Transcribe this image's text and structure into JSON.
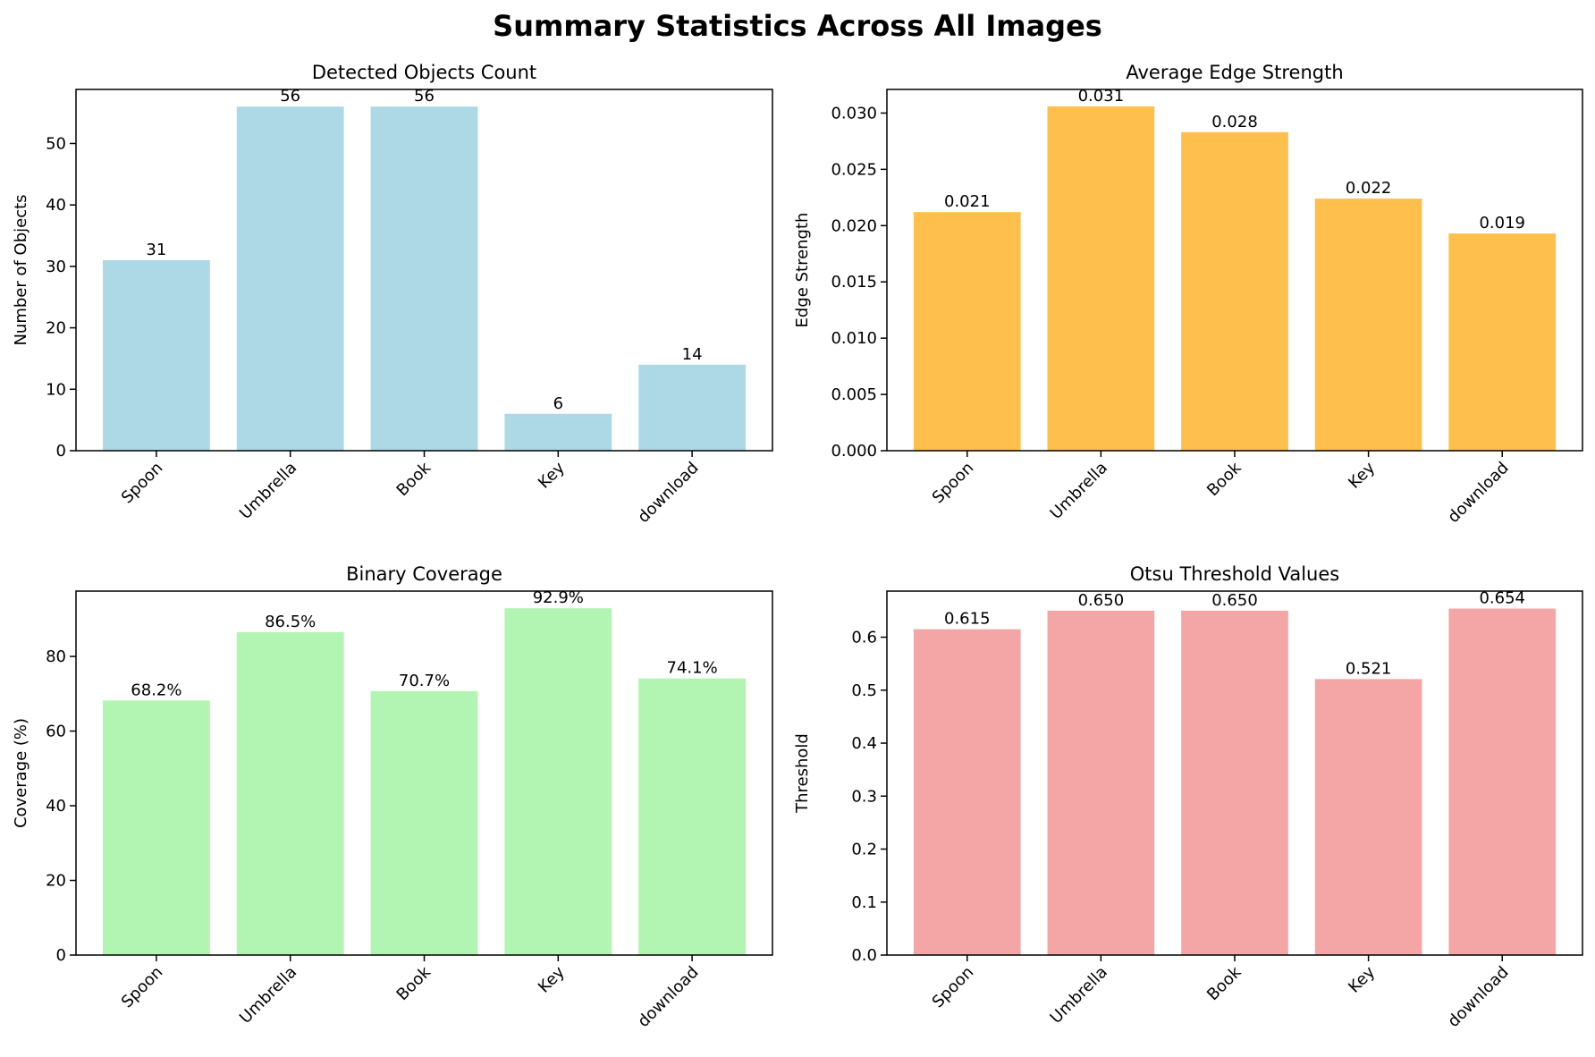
{
  "suptitle": "Summary Statistics Across All Images",
  "chart_data": [
    {
      "type": "bar",
      "title": "Detected Objects Count",
      "xlabel": "",
      "ylabel": "Number of Objects",
      "categories": [
        "Spoon",
        "Umbrella",
        "Book",
        "Key",
        "download"
      ],
      "values": [
        31,
        56,
        56,
        6,
        14
      ],
      "value_labels": [
        "31",
        "56",
        "56",
        "6",
        "14"
      ],
      "ylim": [
        0,
        58.8
      ],
      "yticks": [
        0,
        10,
        20,
        30,
        40,
        50
      ],
      "ytick_labels": [
        "0",
        "10",
        "20",
        "30",
        "40",
        "50"
      ],
      "bar_color": "#add8e6",
      "grid": false
    },
    {
      "type": "bar",
      "title": "Average Edge Strength",
      "xlabel": "",
      "ylabel": "Edge Strength",
      "categories": [
        "Spoon",
        "Umbrella",
        "Book",
        "Key",
        "download"
      ],
      "values": [
        0.0212,
        0.0306,
        0.0283,
        0.0224,
        0.0193
      ],
      "value_labels": [
        "0.021",
        "0.031",
        "0.028",
        "0.022",
        "0.019"
      ],
      "ylim": [
        0,
        0.0321
      ],
      "yticks": [
        0,
        0.005,
        0.01,
        0.015,
        0.02,
        0.025,
        0.03
      ],
      "ytick_labels": [
        "0.000",
        "0.005",
        "0.010",
        "0.015",
        "0.020",
        "0.025",
        "0.030"
      ],
      "bar_color": "#ffbf4d",
      "grid": false
    },
    {
      "type": "bar",
      "title": "Binary Coverage",
      "xlabel": "",
      "ylabel": "Coverage (%)",
      "categories": [
        "Spoon",
        "Umbrella",
        "Book",
        "Key",
        "download"
      ],
      "values": [
        68.2,
        86.5,
        70.7,
        92.9,
        74.1
      ],
      "value_labels": [
        "68.2%",
        "86.5%",
        "70.7%",
        "92.9%",
        "74.1%"
      ],
      "ylim": [
        0,
        97.5
      ],
      "yticks": [
        0,
        20,
        40,
        60,
        80
      ],
      "ytick_labels": [
        "0",
        "20",
        "40",
        "60",
        "80"
      ],
      "bar_color": "#b2f4b2",
      "grid": false
    },
    {
      "type": "bar",
      "title": "Otsu Threshold Values",
      "xlabel": "",
      "ylabel": "Threshold",
      "categories": [
        "Spoon",
        "Umbrella",
        "Book",
        "Key",
        "download"
      ],
      "values": [
        0.615,
        0.65,
        0.65,
        0.521,
        0.654
      ],
      "value_labels": [
        "0.615",
        "0.650",
        "0.650",
        "0.521",
        "0.654"
      ],
      "ylim": [
        0,
        0.687
      ],
      "yticks": [
        0,
        0.1,
        0.2,
        0.3,
        0.4,
        0.5,
        0.6
      ],
      "ytick_labels": [
        "0.0",
        "0.1",
        "0.2",
        "0.3",
        "0.4",
        "0.5",
        "0.6"
      ],
      "bar_color": "#f4a6a6",
      "grid": false
    }
  ]
}
